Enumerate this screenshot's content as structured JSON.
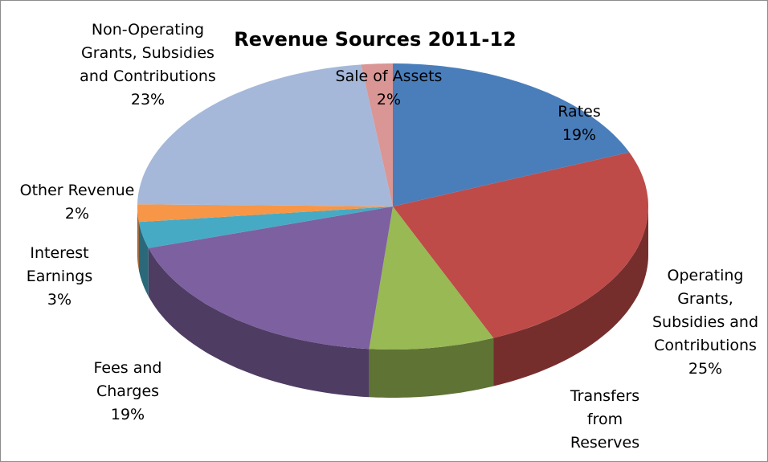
{
  "chart_data": {
    "type": "pie3d",
    "title": "Revenue Sources 2011-12",
    "categories": [
      "Rates",
      "Operating Grants, Subsidies and Contributions",
      "Transfers from Reserves",
      "Fees and Charges",
      "Interest Earnings",
      "Other Revenue",
      "Non-Operating Grants, Subsidies and Contributions",
      "Sale of Assets"
    ],
    "values": [
      19,
      25,
      8,
      19,
      3,
      2,
      23,
      2
    ],
    "value_labels": [
      "19%",
      "25%",
      null,
      "19%",
      "3%",
      "2%",
      "23%",
      "2%"
    ],
    "colors": [
      "#4a7ebb",
      "#be4b48",
      "#98b954",
      "#7d60a0",
      "#46aac5",
      "#f79646",
      "#a5b8d9",
      "#d99694"
    ]
  }
}
